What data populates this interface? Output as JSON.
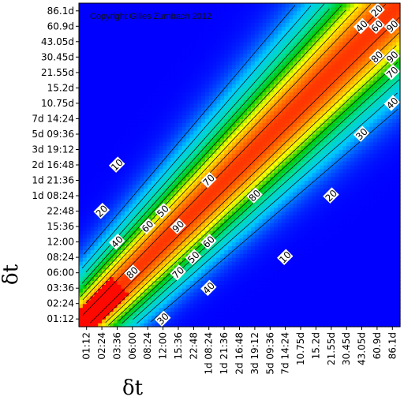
{
  "chart_data": {
    "type": "heatmap",
    "title": "",
    "xlabel": "δt",
    "ylabel": "δt",
    "copyright": "Copyright Gilles Zumbach 2012",
    "tick_labels": [
      "01:12",
      "02:24",
      "03:36",
      "06:00",
      "08:24",
      "12:00",
      "15:36",
      "22:48",
      "1d 08:24",
      "1d 21:36",
      "2d 16:48",
      "3d 19:12",
      "5d 09:36",
      "7d 14:24",
      "10.75d",
      "15.2d",
      "21.55d",
      "30.45d",
      "43.05d",
      "60.9d",
      "86.1d"
    ],
    "x_ticks_shown": [
      "01:12",
      "02:24",
      "03:36",
      "06:00",
      "08:24",
      "12:00",
      "15:36",
      "22:48",
      "1d 08:24",
      "1d 21:36",
      "2d 16:48",
      "3d 19:12",
      "5d 09:36",
      "7d 14:24",
      "10.75d",
      "15.2d",
      "21.55d",
      "30.45d",
      "43.05d",
      "60.9d",
      "86.1d"
    ],
    "y_ticks_shown": [
      "01:12",
      "02:24",
      "03:36",
      "06:00",
      "08:24",
      "12:00",
      "15:36",
      "22:48",
      "1d 08:24",
      "1d 21:36",
      "2d 16:48",
      "3d 19:12",
      "5d 09:36",
      "7d 14:24",
      "10.75d",
      "15.2d",
      "21.55d",
      "30.45d",
      "43.05d",
      "60.9d",
      "86.1d"
    ],
    "value_range": [
      0,
      100
    ],
    "colormap": [
      "#0000ff",
      "#00c8ff",
      "#00e0a0",
      "#00c800",
      "#ffff00",
      "#ff8000",
      "#ff0000"
    ],
    "contour_levels": [
      10,
      20,
      30,
      40,
      50,
      60,
      70,
      80,
      90
    ],
    "contour_labels": [
      {
        "text": "20",
        "x": "60.9d",
        "y": "86.1d"
      },
      {
        "text": "40",
        "x": "43.05d",
        "y": "60.9d"
      },
      {
        "text": "60",
        "x": "60.9d",
        "y": "60.9d"
      },
      {
        "text": "90",
        "x": "86.1d",
        "y": "60.9d"
      },
      {
        "text": "80",
        "x": "60.9d",
        "y": "30.45d"
      },
      {
        "text": "90",
        "x": "86.1d",
        "y": "30.45d"
      },
      {
        "text": "70",
        "x": "86.1d",
        "y": "21.55d"
      },
      {
        "text": "40",
        "x": "86.1d",
        "y": "10.75d"
      },
      {
        "text": "30",
        "x": "43.05d",
        "y": "5d 09:36"
      },
      {
        "text": "30",
        "x": "15.36",
        "y": "3d 19:12"
      },
      {
        "text": "10",
        "x": "03:36",
        "y": "2d 16:48"
      },
      {
        "text": "70",
        "x": "1d 08:24",
        "y": "1d 21:36"
      },
      {
        "text": "80",
        "x": "3d 19:12",
        "y": "1d 08:24"
      },
      {
        "text": "20",
        "x": "21.55d",
        "y": "1d 08:24"
      },
      {
        "text": "20",
        "x": "02:24",
        "y": "22:48"
      },
      {
        "text": "50",
        "x": "12:00",
        "y": "22:48"
      },
      {
        "text": "60",
        "x": "08:24",
        "y": "15:36"
      },
      {
        "text": "90",
        "x": "15:36",
        "y": "15:36"
      },
      {
        "text": "40",
        "x": "03:36",
        "y": "12:00"
      },
      {
        "text": "60",
        "x": "1d 08:24",
        "y": "12:00"
      },
      {
        "text": "50",
        "x": "22:48",
        "y": "08:24"
      },
      {
        "text": "10",
        "x": "7d 14:24",
        "y": "08:24"
      },
      {
        "text": "80",
        "x": "06:00",
        "y": "06:00"
      },
      {
        "text": "70",
        "x": "15:36",
        "y": "06:00"
      },
      {
        "text": "40",
        "x": "1d 08:24",
        "y": "03:36"
      },
      {
        "text": "30",
        "x": "12:00",
        "y": "01:12"
      }
    ]
  }
}
